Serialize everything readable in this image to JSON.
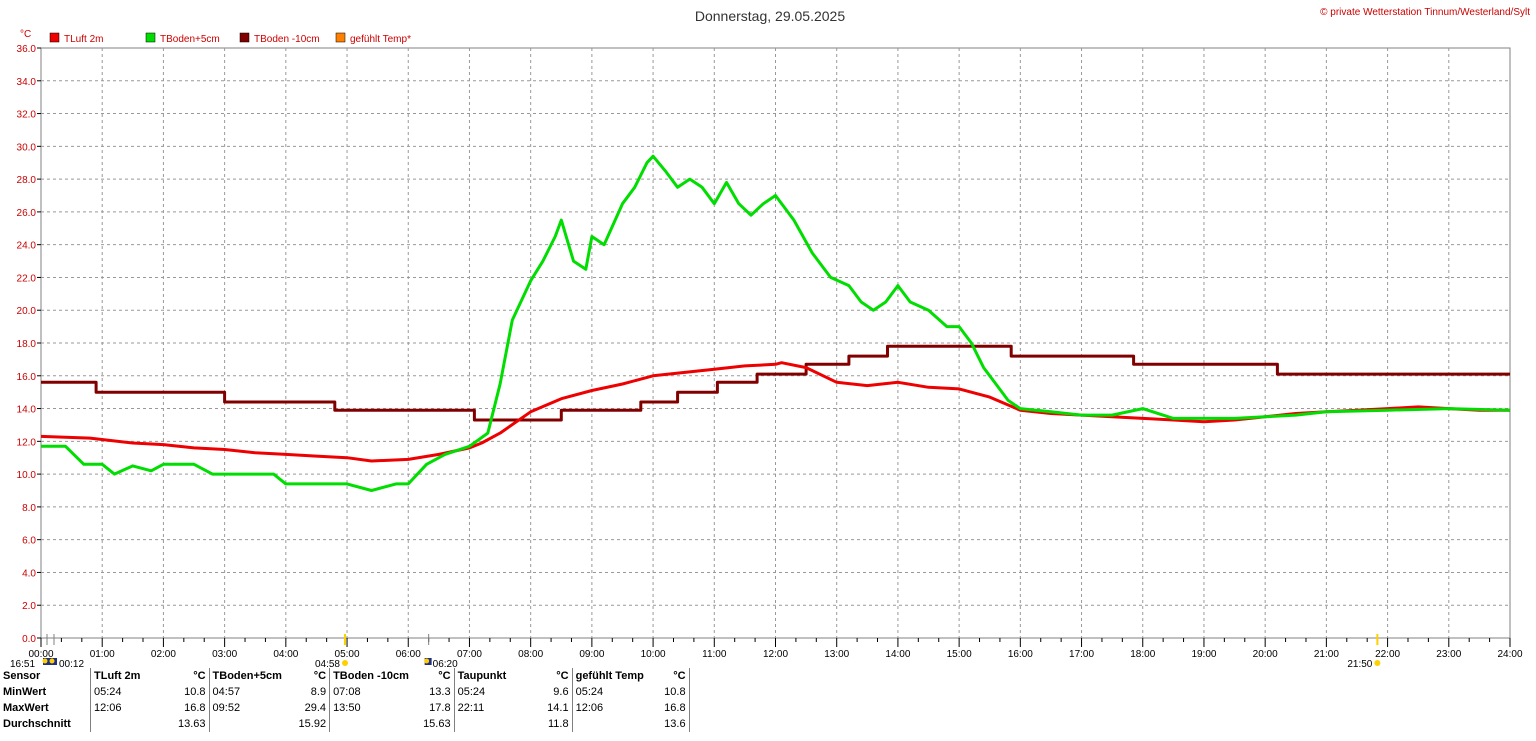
{
  "page": {
    "title": "Donnerstag, 29.05.2025",
    "copyright": "© private Wetterstation Tinnum/Westerland/Sylt"
  },
  "chart_data": {
    "type": "line",
    "yunit": "°C",
    "ylim": [
      0,
      36
    ],
    "yticks": [
      "0.0",
      "2.0",
      "4.0",
      "6.0",
      "8.0",
      "10.0",
      "12.0",
      "14.0",
      "16.0",
      "18.0",
      "20.0",
      "22.0",
      "24.0",
      "26.0",
      "28.0",
      "30.0",
      "32.0",
      "34.0",
      "36.0"
    ],
    "xlim": [
      0,
      24
    ],
    "xticks": [
      "00:00",
      "01:00",
      "02:00",
      "03:00",
      "04:00",
      "05:00",
      "06:00",
      "07:00",
      "08:00",
      "09:00",
      "10:00",
      "11:00",
      "12:00",
      "13:00",
      "14:00",
      "15:00",
      "16:00",
      "17:00",
      "18:00",
      "19:00",
      "20:00",
      "21:00",
      "22:00",
      "23:00",
      "24:00"
    ],
    "grid": true,
    "legend_position": "top-left",
    "legend": [
      {
        "label": "TLuft 2m",
        "color": "#ee0000"
      },
      {
        "label": "TBoden+5cm",
        "color": "#00dd00"
      },
      {
        "label": "TBoden -10cm",
        "color": "#800000"
      },
      {
        "label": "gefühlt Temp*",
        "color": "#ff8000"
      }
    ],
    "series": [
      {
        "name": "TLuft 2m",
        "color": "#ee0000",
        "step": false,
        "x": [
          0,
          0.8,
          1.5,
          2,
          2.5,
          3,
          3.5,
          4,
          4.5,
          5,
          5.4,
          6,
          6.5,
          7,
          7.2,
          7.5,
          8,
          8.5,
          9,
          9.5,
          10,
          10.5,
          11,
          11.5,
          12,
          12.1,
          12.5,
          13,
          13.5,
          14,
          14.5,
          15,
          15.5,
          16,
          16.5,
          17,
          17.5,
          18,
          18.5,
          19,
          19.5,
          20,
          20.5,
          21,
          21.5,
          22,
          22.5,
          23,
          23.5,
          24
        ],
        "y": [
          12.3,
          12.2,
          11.9,
          11.8,
          11.6,
          11.5,
          11.3,
          11.2,
          11.1,
          11.0,
          10.8,
          10.9,
          11.2,
          11.6,
          11.9,
          12.5,
          13.8,
          14.6,
          15.1,
          15.5,
          16.0,
          16.2,
          16.4,
          16.6,
          16.7,
          16.8,
          16.5,
          15.6,
          15.4,
          15.6,
          15.3,
          15.2,
          14.7,
          13.9,
          13.7,
          13.6,
          13.5,
          13.4,
          13.3,
          13.2,
          13.3,
          13.5,
          13.7,
          13.8,
          13.9,
          14.0,
          14.1,
          14.0,
          13.9,
          13.9
        ]
      },
      {
        "name": "TBoden+5cm",
        "color": "#00dd00",
        "step": false,
        "x": [
          0,
          0.4,
          0.7,
          1,
          1.2,
          1.5,
          1.8,
          2,
          2.5,
          2.8,
          3,
          3.5,
          3.8,
          4,
          4.5,
          4.8,
          5,
          5.4,
          5.8,
          6,
          6.3,
          6.6,
          7,
          7.3,
          7.5,
          7.7,
          8,
          8.2,
          8.4,
          8.5,
          8.7,
          8.9,
          9,
          9.2,
          9.5,
          9.7,
          9.9,
          10,
          10.2,
          10.4,
          10.6,
          10.8,
          11,
          11.2,
          11.4,
          11.6,
          11.8,
          12,
          12.3,
          12.6,
          12.9,
          13.2,
          13.4,
          13.6,
          13.8,
          14,
          14.2,
          14.5,
          14.8,
          15,
          15.2,
          15.4,
          15.6,
          15.8,
          16,
          16.5,
          17,
          17.5,
          18,
          18.5,
          19,
          19.5,
          20,
          20.5,
          21,
          22,
          23,
          24
        ],
        "y": [
          11.7,
          11.7,
          10.6,
          10.6,
          10.0,
          10.5,
          10.2,
          10.6,
          10.6,
          10.0,
          10.0,
          10.0,
          10.0,
          9.4,
          9.4,
          9.4,
          9.4,
          9.0,
          9.4,
          9.4,
          10.6,
          11.2,
          11.7,
          12.5,
          15.5,
          19.4,
          21.8,
          23.0,
          24.5,
          25.5,
          23.0,
          22.5,
          24.5,
          24.0,
          26.5,
          27.5,
          29.0,
          29.4,
          28.5,
          27.5,
          28.0,
          27.5,
          26.5,
          27.8,
          26.5,
          25.8,
          26.5,
          27.0,
          25.5,
          23.5,
          22.0,
          21.5,
          20.5,
          20.0,
          20.5,
          21.5,
          20.5,
          20.0,
          19.0,
          19.0,
          18.0,
          16.5,
          15.5,
          14.5,
          14.0,
          13.8,
          13.6,
          13.6,
          14.0,
          13.4,
          13.4,
          13.4,
          13.5,
          13.6,
          13.8,
          13.9,
          14.0,
          13.9
        ]
      },
      {
        "name": "TBoden -10cm",
        "color": "#800000",
        "step": true,
        "x": [
          0,
          0.9,
          3,
          4.8,
          7.08,
          8.5,
          9.8,
          10.4,
          11.05,
          11.7,
          12.5,
          13.2,
          13.83,
          15.85,
          17.85,
          20.2,
          24
        ],
        "y": [
          15.6,
          15.0,
          14.4,
          13.9,
          13.3,
          13.9,
          14.4,
          15.0,
          15.6,
          16.1,
          16.7,
          17.2,
          17.8,
          17.2,
          16.7,
          16.1,
          16.1
        ]
      },
      {
        "name": "gefühlt Temp*",
        "color": "#ff8000",
        "step": false,
        "x": [],
        "y": []
      }
    ],
    "events": [
      {
        "time": "16:51",
        "icon": "moonset-icon"
      },
      {
        "time": "00:12",
        "icon": "moon-icon"
      },
      {
        "time": "04:58",
        "icon": "sunrise-icon"
      },
      {
        "time": "06:20",
        "icon": "moonrise-icon"
      },
      {
        "time": "21:50",
        "icon": "sunset-icon"
      }
    ]
  },
  "stats": {
    "header": {
      "sensor": "Sensor",
      "tluft": "TLuft 2m",
      "tluft_unit": "°C",
      "tb5": "TBoden+5cm",
      "tb5_unit": "°C",
      "tb10": "TBoden -10cm",
      "tb10_unit": "°C",
      "taupunkt": "Taupunkt",
      "taupunkt_unit": "°C",
      "gefuehlt": "gefühlt Temp",
      "gefuehlt_unit": "°C"
    },
    "rows": [
      {
        "label": "MinWert",
        "tluft_time": "05:24",
        "tluft_val": "10.8",
        "tb5_time": "04:57",
        "tb5_val": "8.9",
        "tb10_time": "07:08",
        "tb10_val": "13.3",
        "taupunkt_time": "05:24",
        "taupunkt_val": "9.6",
        "gefuehlt_time": "05:24",
        "gefuehlt_val": "10.8"
      },
      {
        "label": "MaxWert",
        "tluft_time": "12:06",
        "tluft_val": "16.8",
        "tb5_time": "09:52",
        "tb5_val": "29.4",
        "tb10_time": "13:50",
        "tb10_val": "17.8",
        "taupunkt_time": "22:11",
        "taupunkt_val": "14.1",
        "gefuehlt_time": "12:06",
        "gefuehlt_val": "16.8"
      },
      {
        "label": "Durchschnitt",
        "tluft_time": "",
        "tluft_val": "13.63",
        "tb5_time": "",
        "tb5_val": "15.92",
        "tb10_time": "",
        "tb10_val": "15.63",
        "taupunkt_time": "",
        "taupunkt_val": "11.8",
        "gefuehlt_time": "",
        "gefuehlt_val": "13.6"
      }
    ]
  }
}
